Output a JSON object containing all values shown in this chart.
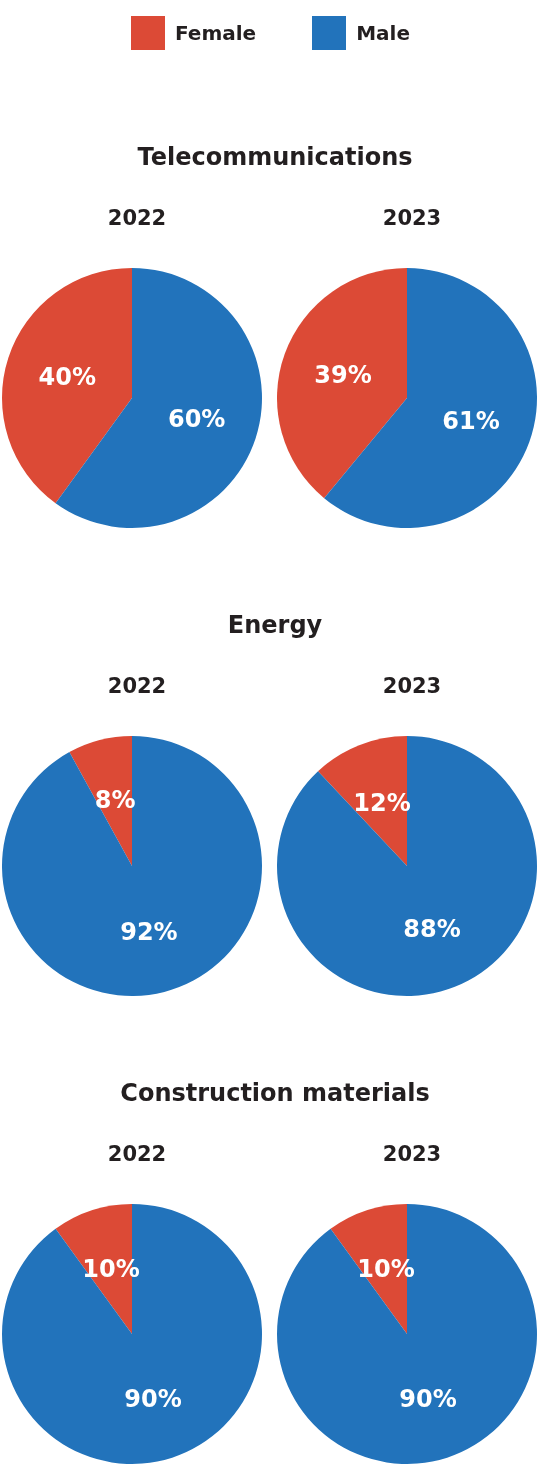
{
  "chart_data": [
    {
      "type": "pie",
      "title": "Telecommunications",
      "subtitle": "2022",
      "categories": [
        "Female",
        "Male"
      ],
      "values": [
        40,
        60
      ],
      "colors": [
        "#dc4a36",
        "#2273bb"
      ],
      "value_labels": [
        "40%",
        "60%"
      ],
      "legend": "top"
    },
    {
      "type": "pie",
      "subtitle": "2023",
      "categories": [
        null,
        null
      ],
      "values": [
        39,
        61
      ],
      "colors": [
        "#dc4a36",
        "#2273bb"
      ],
      "value_labels": [
        "39%",
        "61%"
      ]
    },
    {
      "type": "pie",
      "title": "Energy",
      "subtitle": "2022",
      "categories": [
        null,
        null
      ],
      "values": [
        8,
        92
      ],
      "colors": [
        "#dc4a36",
        "#2273bb"
      ],
      "value_labels": [
        "8%",
        "92%"
      ]
    },
    {
      "type": "pie",
      "subtitle": "2023",
      "categories": [
        null,
        null
      ],
      "values": [
        12,
        88
      ],
      "colors": [
        "#dc4a36",
        "#2273bb"
      ],
      "value_labels": [
        "12%",
        "88%"
      ]
    },
    {
      "type": "pie",
      "title": "Construction materials",
      "subtitle": "2022",
      "categories": [
        null,
        null
      ],
      "values": [
        10,
        90
      ],
      "colors": [
        "#dc4a36",
        "#2273bb"
      ],
      "value_labels": [
        "10%",
        "90%"
      ]
    },
    {
      "type": "pie",
      "subtitle": "2023",
      "categories": [
        null,
        null
      ],
      "values": [
        10,
        90
      ],
      "colors": [
        "#dc4a36",
        "#2273bb"
      ],
      "value_labels": [
        "10%",
        "90%"
      ]
    }
  ]
}
